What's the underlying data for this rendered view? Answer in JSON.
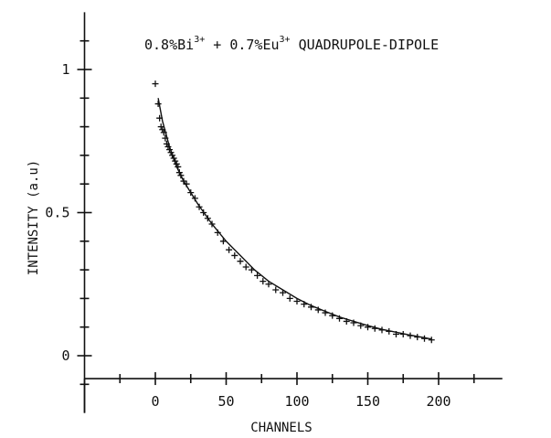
{
  "chart_data": {
    "type": "scatter",
    "title": {
      "prefix": "0.8%Bi",
      "sup1": "3+",
      "middle": " + 0.7%Eu",
      "sup2": "3+",
      "suffix": " QUADRUPOLE-DIPOLE"
    },
    "xlabel": "CHANNELS",
    "ylabel": "INTENSITY (a.u)",
    "xlim": [
      -50,
      245
    ],
    "ylim": [
      -0.2,
      1.2
    ],
    "x_ticks": [
      0,
      50,
      100,
      150,
      200
    ],
    "y_ticks": [
      0,
      0.5,
      1
    ],
    "y_tick_labels": [
      "0",
      "0.5",
      "1"
    ],
    "x_tick_labels": [
      "0",
      "50",
      "100",
      "150",
      "200"
    ],
    "grid": false,
    "series": [
      {
        "style": "markers",
        "marker": "plus",
        "x": [
          0,
          2,
          3,
          4,
          5,
          6,
          7,
          8,
          9,
          10,
          11,
          12,
          13,
          14,
          15,
          16,
          17,
          18,
          20,
          22,
          25,
          28,
          31,
          34,
          37,
          40,
          44,
          48,
          52,
          56,
          60,
          64,
          68,
          72,
          76,
          80,
          85,
          90,
          95,
          100,
          105,
          110,
          115,
          120,
          125,
          130,
          135,
          140,
          145,
          150,
          155,
          160,
          165,
          170,
          175,
          180,
          185,
          190,
          195
        ],
        "y": [
          0.95,
          0.88,
          0.83,
          0.8,
          0.79,
          0.78,
          0.76,
          0.74,
          0.73,
          0.72,
          0.71,
          0.7,
          0.69,
          0.68,
          0.67,
          0.66,
          0.64,
          0.63,
          0.61,
          0.6,
          0.57,
          0.55,
          0.52,
          0.5,
          0.48,
          0.46,
          0.43,
          0.4,
          0.37,
          0.35,
          0.33,
          0.31,
          0.3,
          0.28,
          0.26,
          0.25,
          0.23,
          0.22,
          0.2,
          0.19,
          0.18,
          0.17,
          0.16,
          0.15,
          0.14,
          0.13,
          0.12,
          0.115,
          0.105,
          0.1,
          0.095,
          0.09,
          0.085,
          0.075,
          0.075,
          0.07,
          0.065,
          0.06,
          0.055
        ]
      },
      {
        "style": "line",
        "x": [
          2,
          5,
          10,
          15,
          20,
          25,
          30,
          40,
          50,
          60,
          70,
          80,
          90,
          100,
          110,
          120,
          130,
          140,
          150,
          160,
          170,
          180,
          190,
          195
        ],
        "y": [
          0.9,
          0.82,
          0.73,
          0.66,
          0.61,
          0.57,
          0.53,
          0.46,
          0.4,
          0.35,
          0.3,
          0.26,
          0.23,
          0.2,
          0.175,
          0.155,
          0.135,
          0.12,
          0.105,
          0.092,
          0.082,
          0.072,
          0.063,
          0.058
        ]
      }
    ]
  }
}
